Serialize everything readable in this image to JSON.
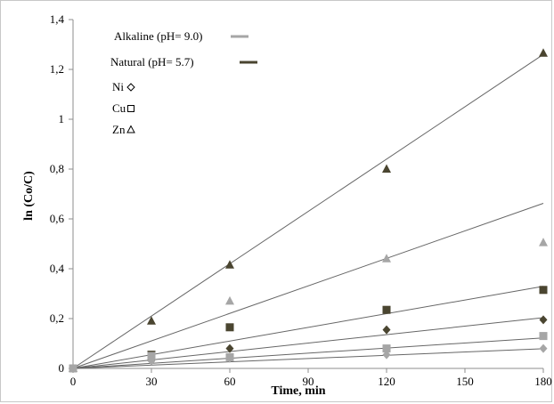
{
  "chart_data": {
    "type": "scatter",
    "title": "",
    "xlabel": "Time, min",
    "ylabel": "ln (Co/C)",
    "xlim": [
      0,
      180
    ],
    "ylim": [
      0,
      1.4
    ],
    "xticks": [
      "0",
      "30",
      "60",
      "90",
      "120",
      "150",
      "180"
    ],
    "yticks": [
      "0",
      "0,2",
      "0,4",
      "0,6",
      "0,8",
      "1",
      "1,2",
      "1,4"
    ],
    "grid": false,
    "legend_position": "top-left",
    "legend": {
      "conditions": [
        {
          "label": "Alkaline (pH= 9.0)",
          "color": "#a6a6a6"
        },
        {
          "label": "Natural (pH= 5.7)",
          "color": "#4a4530"
        }
      ],
      "metals": [
        {
          "label": "Ni",
          "symbol": "◇"
        },
        {
          "label": "Cu",
          "symbol": "▫"
        },
        {
          "label": "Zn",
          "symbol": "▵"
        }
      ]
    },
    "series": [
      {
        "condition": "Natural",
        "metal": "Zn",
        "marker": "triangle",
        "color": "#4a4530",
        "x": [
          0,
          30,
          60,
          120,
          180
        ],
        "y": [
          0,
          0.19,
          0.415,
          0.8,
          1.265
        ],
        "fit_slope": 0.007
      },
      {
        "condition": "Alkaline",
        "metal": "Zn",
        "marker": "triangle",
        "color": "#a6a6a6",
        "x": [
          0,
          60,
          120,
          180
        ],
        "y": [
          0,
          0.27,
          0.44,
          0.505
        ],
        "fit_slope": 0.00368
      },
      {
        "condition": "Natural",
        "metal": "Cu",
        "marker": "square",
        "color": "#4a4530",
        "x": [
          0,
          30,
          60,
          120,
          180
        ],
        "y": [
          0,
          0.055,
          0.165,
          0.235,
          0.315
        ],
        "fit_slope": 0.00183
      },
      {
        "condition": "Natural",
        "metal": "Ni",
        "marker": "diamond",
        "color": "#4a4530",
        "x": [
          0,
          30,
          60,
          120,
          180
        ],
        "y": [
          0,
          0.035,
          0.08,
          0.155,
          0.195
        ],
        "fit_slope": 0.00113
      },
      {
        "condition": "Alkaline",
        "metal": "Cu",
        "marker": "square",
        "color": "#a6a6a6",
        "x": [
          0,
          30,
          60,
          120,
          180
        ],
        "y": [
          0,
          0.05,
          0.045,
          0.08,
          0.13
        ],
        "fit_slope": 0.00068
      },
      {
        "condition": "Alkaline",
        "metal": "Ni",
        "marker": "diamond",
        "color": "#a6a6a6",
        "x": [
          0,
          30,
          60,
          120,
          180
        ],
        "y": [
          0,
          0.03,
          0.04,
          0.055,
          0.08
        ],
        "fit_slope": 0.00044
      }
    ],
    "fit_line_color": "#666666"
  }
}
